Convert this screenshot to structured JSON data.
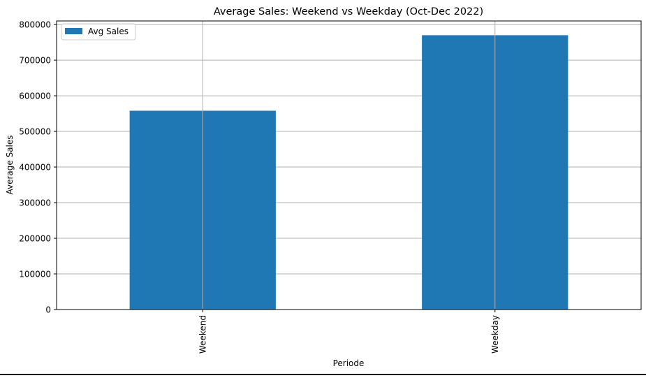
{
  "chart_data": {
    "type": "bar",
    "title": "Average Sales: Weekend vs Weekday (Oct-Dec 2022)",
    "xlabel": "Periode",
    "ylabel": "Average Sales",
    "categories": [
      "Weekend",
      "Weekday"
    ],
    "series": [
      {
        "name": "Avg Sales",
        "values": [
          558000,
          770000
        ]
      }
    ],
    "ylim": [
      0,
      810000
    ],
    "yticks": [
      0,
      100000,
      200000,
      300000,
      400000,
      500000,
      600000,
      700000,
      800000
    ],
    "ytick_labels": [
      "0",
      "100000",
      "200000",
      "300000",
      "400000",
      "500000",
      "600000",
      "700000",
      "800000"
    ],
    "grid": true,
    "legend_position": "top-left",
    "colors": {
      "bar": "#1f77b4",
      "grid": "#b0b0b0",
      "axes": "#000000"
    }
  }
}
